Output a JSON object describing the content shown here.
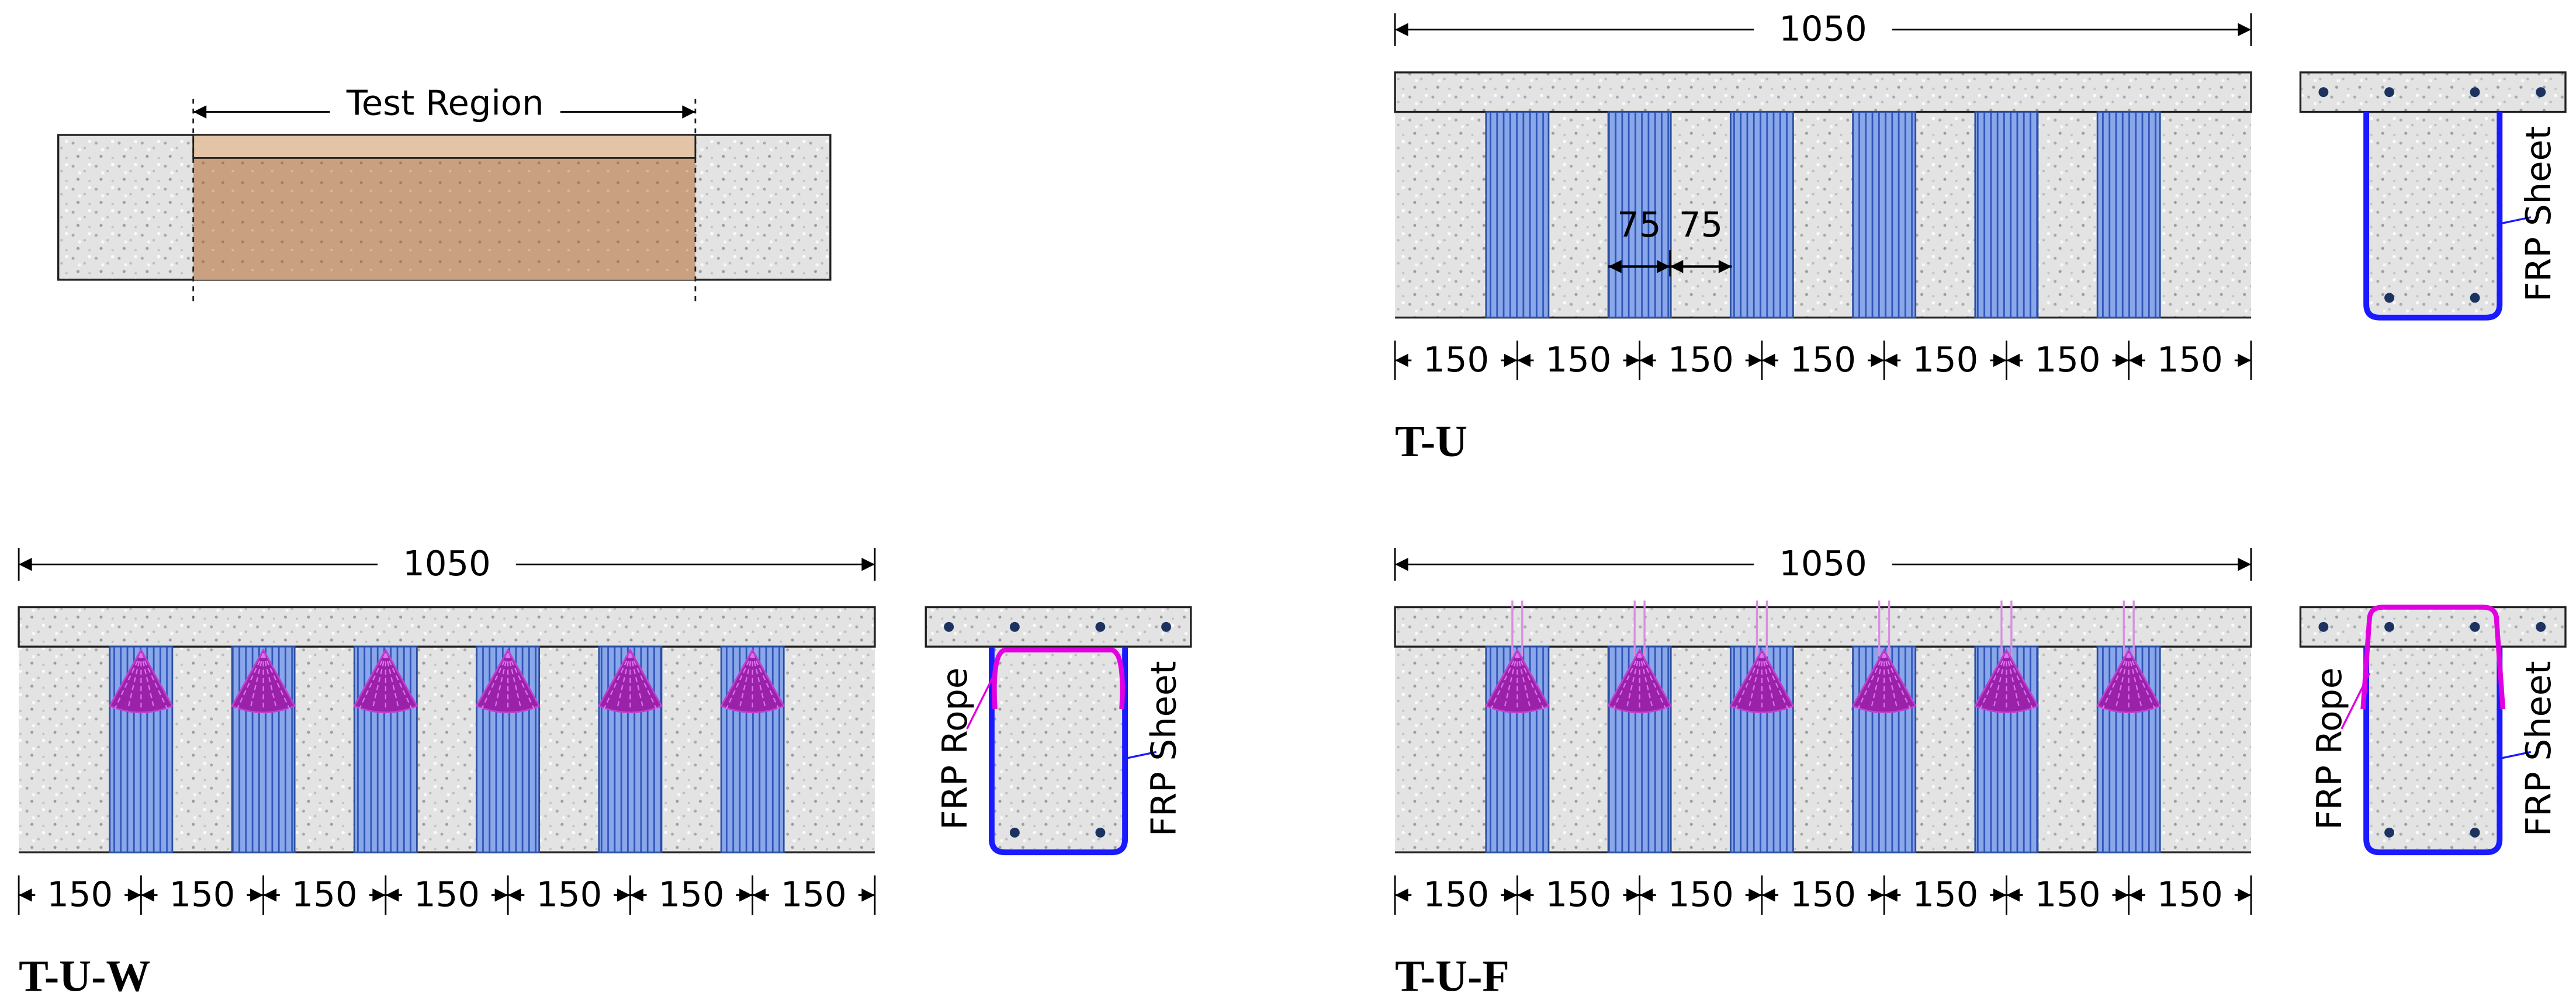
{
  "test_region": {
    "label": "Test Region"
  },
  "panels": [
    {
      "name": "T-U",
      "length": 1050,
      "spacings": [
        150,
        150,
        150,
        150,
        150,
        150,
        150
      ],
      "strip_dims": [
        75,
        75
      ],
      "section_labels": [
        "FRP Sheet"
      ]
    },
    {
      "name": "T-U-W",
      "length": 1050,
      "spacings": [
        150,
        150,
        150,
        150,
        150,
        150,
        150
      ],
      "section_labels": [
        "FRP Rope",
        "FRP Sheet"
      ]
    },
    {
      "name": "T-U-F",
      "length": 1050,
      "spacings": [
        150,
        150,
        150,
        150,
        150,
        150,
        150
      ],
      "section_labels": [
        "FRP Rope",
        "FRP Sheet"
      ]
    }
  ]
}
